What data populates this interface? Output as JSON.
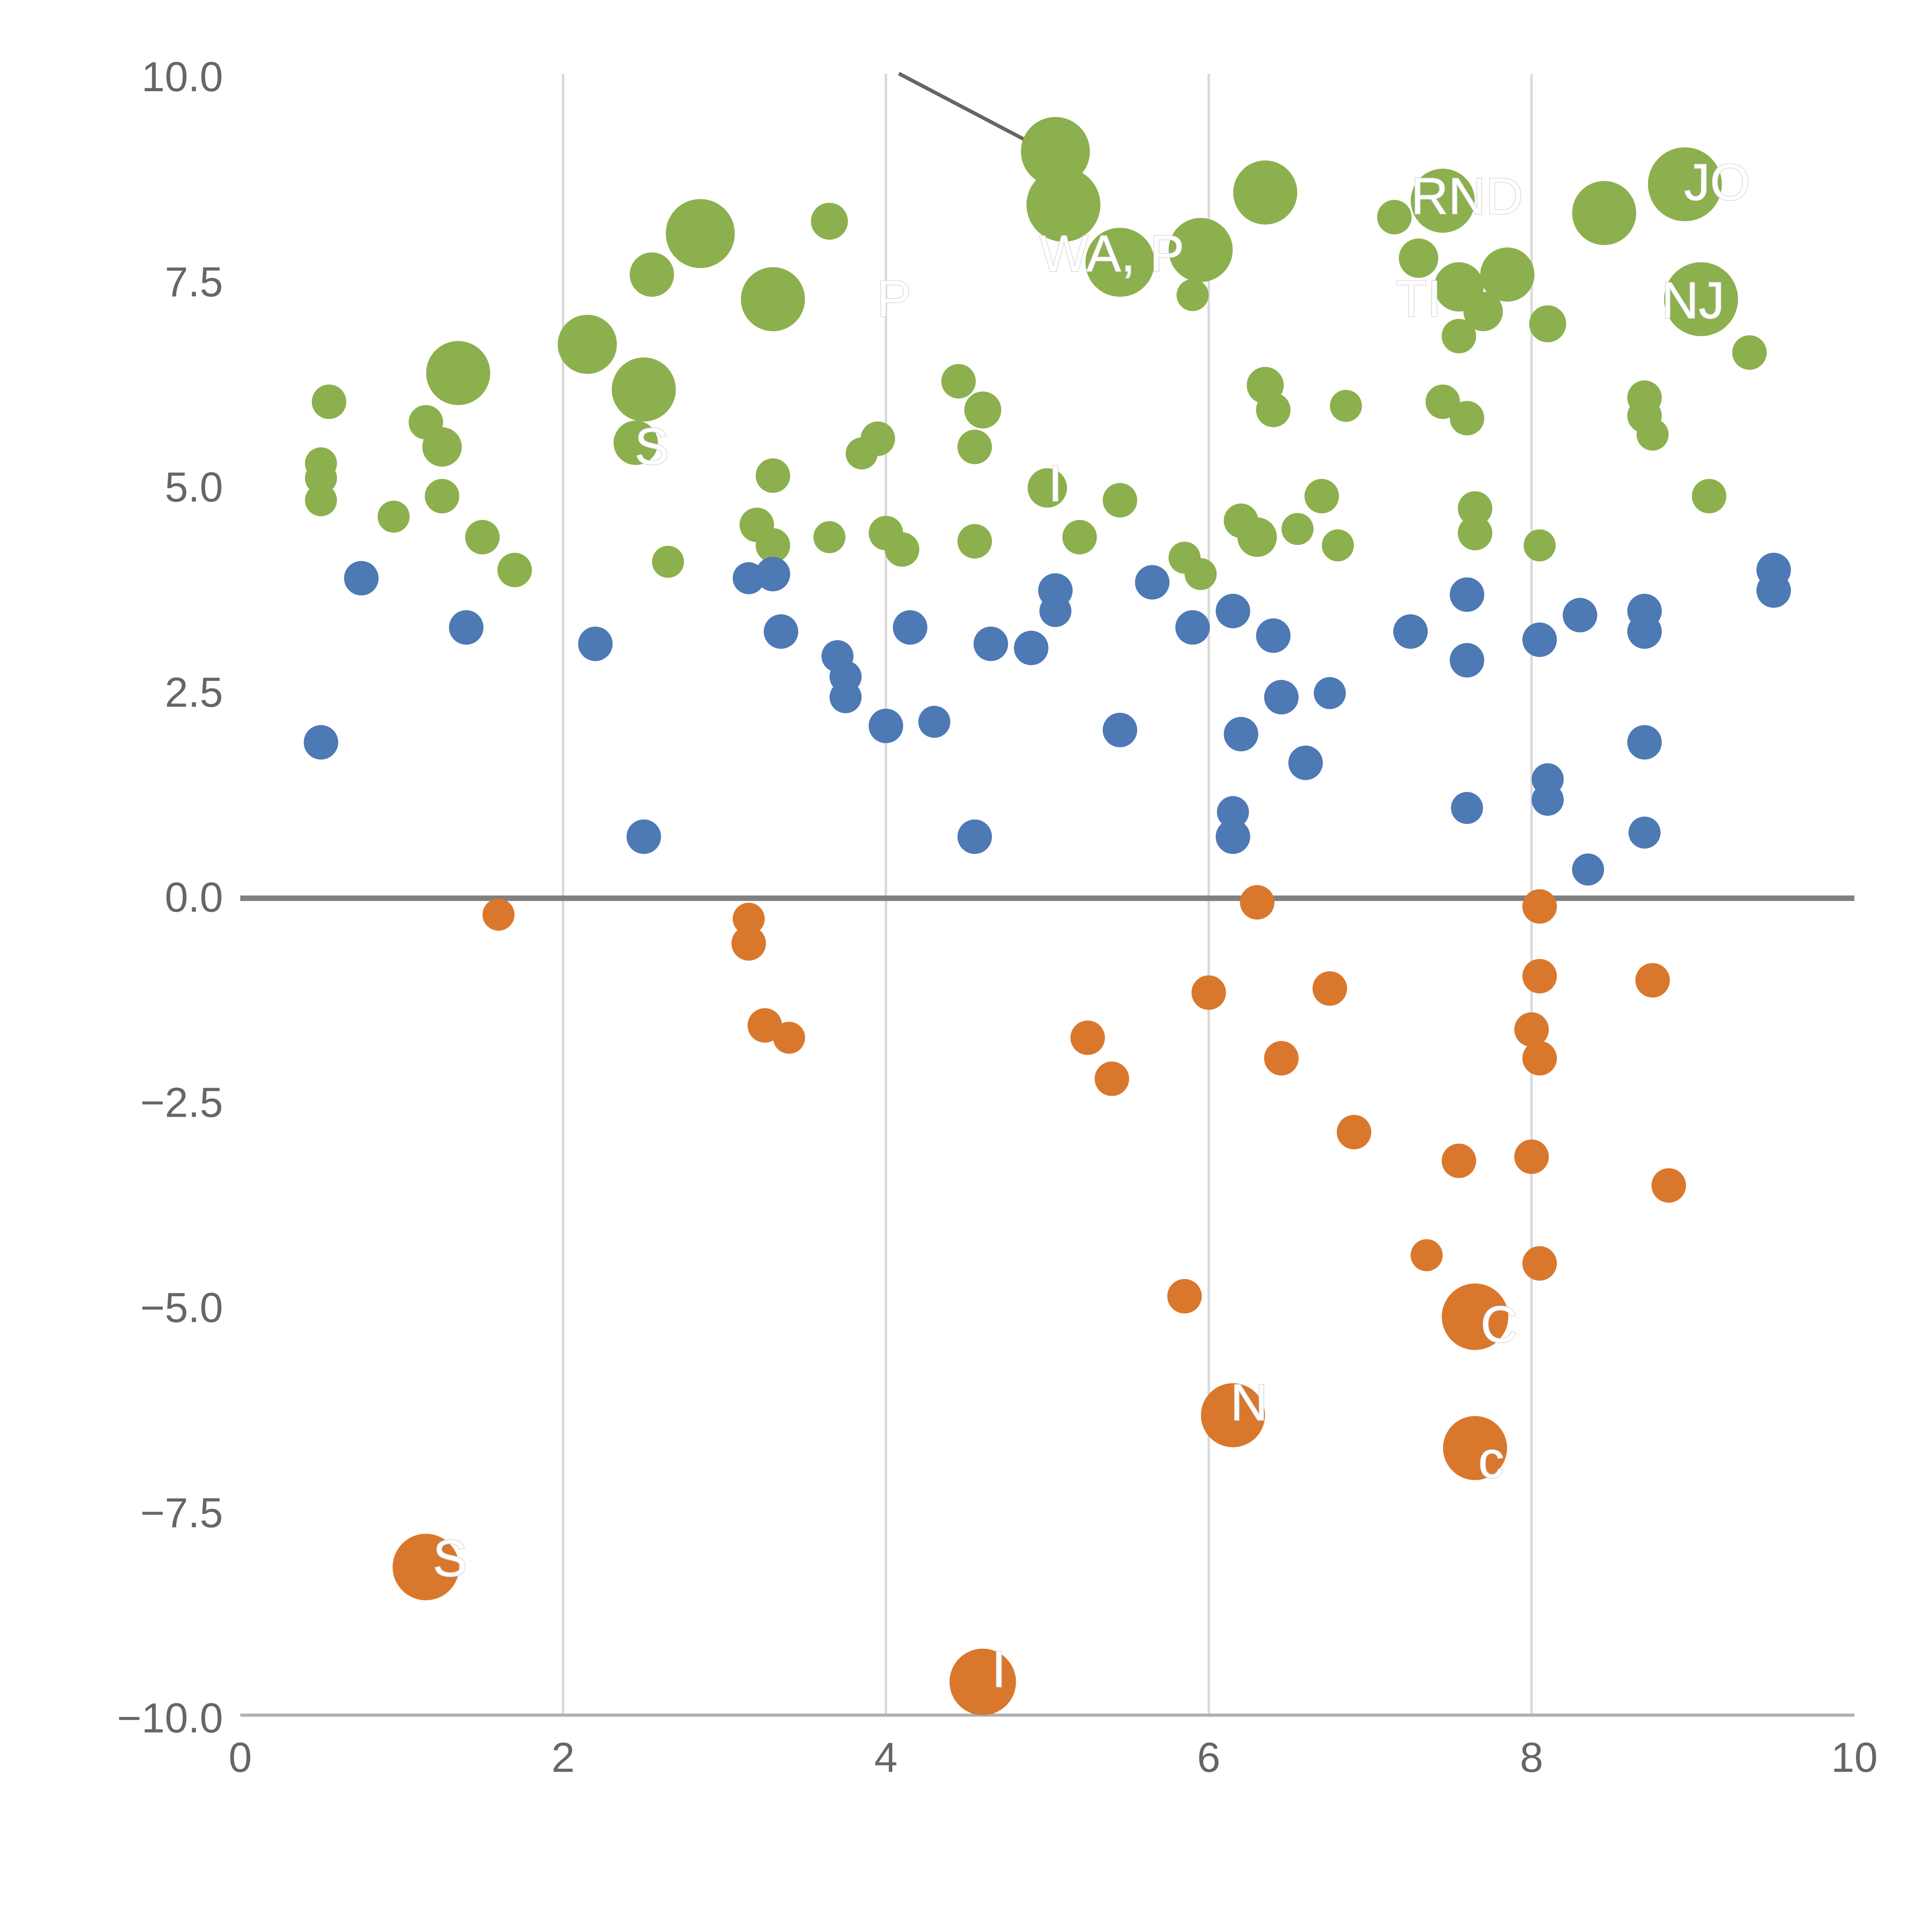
{
  "page": {
    "background": "#ffffff"
  },
  "chart_data": {
    "type": "scatter",
    "title": "",
    "xlabel": "",
    "ylabel": "",
    "xlim": [
      0,
      10
    ],
    "ylim": [
      -10,
      10
    ],
    "grid": "vertical-only",
    "legend": "none",
    "x_ticks": {
      "values": [
        0,
        2,
        4,
        6,
        8,
        10
      ],
      "labels": [
        "0",
        "2",
        "4",
        "6",
        "8",
        "10"
      ]
    },
    "y_ticks": {
      "values": [
        10,
        7.5,
        5,
        2.5,
        0,
        -2.5,
        -5,
        -7.5,
        -10
      ],
      "labels": [
        "10.0",
        "7.5",
        "5.0",
        "2.5",
        "0.0",
        "−2.5",
        "−5.0",
        "−7.5",
        "−10.0"
      ]
    },
    "x_gridlines": [
      2,
      4,
      6,
      8
    ],
    "zero_line": {
      "y": 0,
      "color": "#808080"
    },
    "annotation_line": {
      "x1": 4.08,
      "y1": 10.05,
      "x2": 4.98,
      "y2": 9.12,
      "color": "#666666"
    },
    "colors": {
      "green": "#8CB04E",
      "blue": "#4D79B5",
      "orange": "#D9782D",
      "grid": "#d9d9d9",
      "axis": "#b0b0b0",
      "tick_text": "#666666",
      "label_text": "#ffffff"
    },
    "series": [
      {
        "name": "green",
        "color": "#8CB04E",
        "points": [
          [
            5.05,
            9.1,
            28
          ],
          [
            5.1,
            8.45,
            30
          ],
          [
            6.35,
            8.6,
            26
          ],
          [
            7.45,
            8.5,
            26
          ],
          [
            7.15,
            8.3,
            14
          ],
          [
            8.45,
            8.35,
            26
          ],
          [
            8.95,
            8.7,
            30
          ],
          [
            2.85,
            8.1,
            28
          ],
          [
            3.65,
            8.25,
            15
          ],
          [
            2.55,
            7.6,
            18
          ],
          [
            3.3,
            7.3,
            26
          ],
          [
            5.45,
            7.75,
            28
          ],
          [
            5.95,
            7.9,
            26
          ],
          [
            5.9,
            7.35,
            13
          ],
          [
            7.3,
            7.8,
            16
          ],
          [
            7.55,
            7.45,
            20
          ],
          [
            7.85,
            7.6,
            22
          ],
          [
            7.7,
            7.15,
            16
          ],
          [
            9.05,
            7.3,
            30
          ],
          [
            8.1,
            7.0,
            15
          ],
          [
            7.55,
            6.85,
            14
          ],
          [
            9.35,
            6.65,
            14
          ],
          [
            1.35,
            6.4,
            26
          ],
          [
            2.15,
            6.75,
            24
          ],
          [
            2.5,
            6.2,
            26
          ],
          [
            0.55,
            6.05,
            14
          ],
          [
            4.45,
            6.3,
            14
          ],
          [
            4.6,
            5.95,
            15
          ],
          [
            6.35,
            6.25,
            15
          ],
          [
            6.4,
            5.95,
            14
          ],
          [
            6.85,
            6.0,
            13
          ],
          [
            7.45,
            6.05,
            14
          ],
          [
            7.6,
            5.85,
            14
          ],
          [
            8.7,
            6.1,
            14
          ],
          [
            8.7,
            5.88,
            14
          ],
          [
            8.75,
            5.65,
            13
          ],
          [
            1.15,
            5.8,
            14
          ],
          [
            1.25,
            5.5,
            16
          ],
          [
            2.45,
            5.55,
            18
          ],
          [
            3.95,
            5.6,
            14
          ],
          [
            3.85,
            5.42,
            13
          ],
          [
            4.55,
            5.5,
            14
          ],
          [
            0.5,
            5.3,
            13
          ],
          [
            0.5,
            5.12,
            13
          ],
          [
            3.3,
            5.15,
            14
          ],
          [
            5.0,
            5.0,
            16
          ],
          [
            1.25,
            4.9,
            14
          ],
          [
            0.5,
            4.85,
            13
          ],
          [
            5.45,
            4.85,
            14
          ],
          [
            6.7,
            4.9,
            14
          ],
          [
            9.1,
            4.9,
            14
          ],
          [
            3.2,
            4.55,
            14
          ],
          [
            3.3,
            4.3,
            14
          ],
          [
            1.5,
            4.4,
            14
          ],
          [
            0.95,
            4.65,
            13
          ],
          [
            3.65,
            4.4,
            13
          ],
          [
            4.0,
            4.45,
            14
          ],
          [
            4.1,
            4.25,
            14
          ],
          [
            4.55,
            4.35,
            14
          ],
          [
            5.2,
            4.4,
            14
          ],
          [
            6.2,
            4.6,
            14
          ],
          [
            6.3,
            4.4,
            16
          ],
          [
            6.55,
            4.5,
            13
          ],
          [
            6.8,
            4.3,
            13
          ],
          [
            7.65,
            4.75,
            14
          ],
          [
            7.65,
            4.45,
            14
          ],
          [
            8.05,
            4.3,
            13
          ],
          [
            1.7,
            4.0,
            14
          ],
          [
            2.65,
            4.1,
            13
          ],
          [
            5.85,
            4.15,
            13
          ],
          [
            5.95,
            3.95,
            13
          ]
        ]
      },
      {
        "name": "blue",
        "color": "#4D79B5",
        "points": [
          [
            0.5,
            1.9,
            14
          ],
          [
            0.75,
            3.9,
            14
          ],
          [
            1.4,
            3.3,
            14
          ],
          [
            2.2,
            3.1,
            14
          ],
          [
            2.5,
            0.75,
            14
          ],
          [
            3.3,
            3.95,
            14
          ],
          [
            3.15,
            3.9,
            13
          ],
          [
            3.35,
            3.25,
            14
          ],
          [
            3.7,
            2.95,
            13
          ],
          [
            3.75,
            2.7,
            13
          ],
          [
            3.75,
            2.45,
            13
          ],
          [
            4.0,
            2.1,
            14
          ],
          [
            4.15,
            3.3,
            14
          ],
          [
            4.3,
            2.15,
            13
          ],
          [
            4.55,
            0.75,
            14
          ],
          [
            4.65,
            3.1,
            14
          ],
          [
            4.9,
            3.05,
            14
          ],
          [
            5.05,
            3.75,
            14
          ],
          [
            5.05,
            3.5,
            13
          ],
          [
            5.45,
            2.05,
            14
          ],
          [
            5.65,
            3.85,
            14
          ],
          [
            5.9,
            3.3,
            14
          ],
          [
            6.15,
            3.5,
            14
          ],
          [
            6.2,
            2.0,
            14
          ],
          [
            6.15,
            1.05,
            13
          ],
          [
            6.15,
            0.75,
            14
          ],
          [
            6.4,
            3.2,
            14
          ],
          [
            6.45,
            2.45,
            14
          ],
          [
            6.6,
            1.65,
            14
          ],
          [
            6.75,
            2.5,
            13
          ],
          [
            7.25,
            3.25,
            14
          ],
          [
            7.6,
            3.7,
            14
          ],
          [
            7.6,
            2.9,
            14
          ],
          [
            7.6,
            1.1,
            13
          ],
          [
            8.05,
            3.15,
            14
          ],
          [
            8.1,
            1.45,
            13
          ],
          [
            8.1,
            1.2,
            13
          ],
          [
            8.3,
            3.45,
            14
          ],
          [
            8.35,
            0.35,
            13
          ],
          [
            8.7,
            3.5,
            14
          ],
          [
            8.7,
            3.25,
            14
          ],
          [
            8.7,
            1.9,
            14
          ],
          [
            8.7,
            0.8,
            13
          ],
          [
            9.5,
            4.0,
            14
          ],
          [
            9.5,
            3.75,
            14
          ]
        ]
      },
      {
        "name": "orange",
        "color": "#D9782D",
        "points": [
          [
            1.6,
            -0.2,
            13
          ],
          [
            3.15,
            -0.25,
            13
          ],
          [
            3.15,
            -0.55,
            14
          ],
          [
            3.25,
            -1.55,
            14
          ],
          [
            3.4,
            -1.7,
            13
          ],
          [
            5.25,
            -1.7,
            14
          ],
          [
            5.4,
            -2.2,
            14
          ],
          [
            6.0,
            -1.15,
            14
          ],
          [
            6.3,
            -0.05,
            14
          ],
          [
            6.45,
            -1.95,
            14
          ],
          [
            6.75,
            -1.1,
            14
          ],
          [
            6.9,
            -2.85,
            14
          ],
          [
            5.85,
            -4.85,
            14
          ],
          [
            6.15,
            -6.3,
            26
          ],
          [
            7.35,
            -4.35,
            13
          ],
          [
            7.55,
            -3.2,
            14
          ],
          [
            7.65,
            -5.1,
            27
          ],
          [
            7.65,
            -6.7,
            26
          ],
          [
            8.0,
            -1.6,
            14
          ],
          [
            8.0,
            -3.15,
            14
          ],
          [
            8.05,
            -0.1,
            14
          ],
          [
            8.05,
            -0.95,
            14
          ],
          [
            8.05,
            -1.95,
            14
          ],
          [
            8.05,
            -4.45,
            14
          ],
          [
            8.75,
            -1.0,
            14
          ],
          [
            8.85,
            -3.5,
            14
          ],
          [
            1.15,
            -8.15,
            27
          ],
          [
            4.6,
            -9.55,
            27
          ]
        ]
      }
    ],
    "point_labels": [
      {
        "x": 5.4,
        "y": 7.85,
        "text": "WA, P"
      },
      {
        "x": 7.6,
        "y": 8.55,
        "text": "RND"
      },
      {
        "x": 9.15,
        "y": 8.72,
        "text": "JO"
      },
      {
        "x": 4.05,
        "y": 7.3,
        "text": "P"
      },
      {
        "x": 7.3,
        "y": 7.3,
        "text": "TI"
      },
      {
        "x": 9.0,
        "y": 7.28,
        "text": "NJ"
      },
      {
        "x": 2.55,
        "y": 5.5,
        "text": "S"
      },
      {
        "x": 5.05,
        "y": 5.05,
        "text": "I"
      },
      {
        "x": 7.8,
        "y": -5.2,
        "text": "C"
      },
      {
        "x": 7.75,
        "y": -6.85,
        "text": "c"
      },
      {
        "x": 6.25,
        "y": -6.15,
        "text": "N"
      },
      {
        "x": 1.3,
        "y": -8.05,
        "text": "S"
      },
      {
        "x": 4.7,
        "y": -9.4,
        "text": "I"
      }
    ]
  }
}
